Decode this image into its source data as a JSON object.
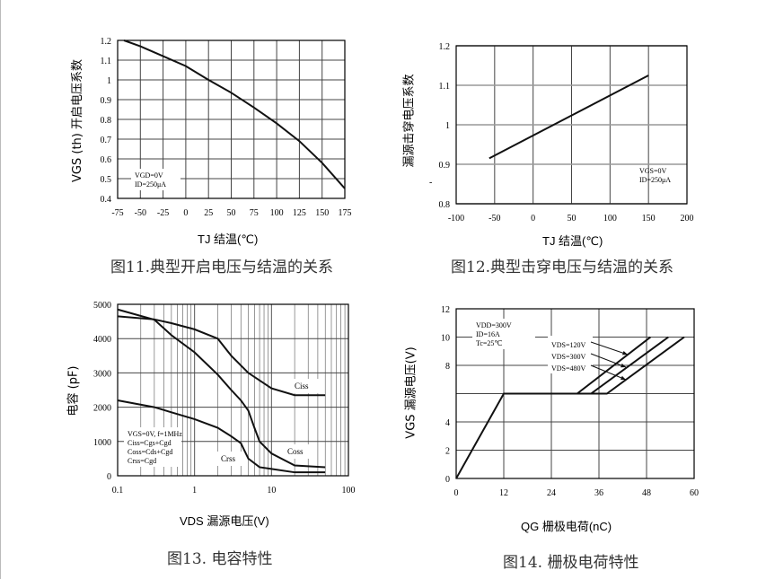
{
  "chart_data": [
    {
      "type": "line",
      "caption": "图11.典型开启电压与结温的关系",
      "xlabel": "TJ 结温(℃)",
      "ylabel": "VGS (th) 开启电压系数",
      "xlim": [
        -75,
        175
      ],
      "ylim": [
        0.4,
        1.2
      ],
      "xticks": [
        -75,
        -50,
        -25,
        0,
        25,
        50,
        75,
        100,
        125,
        150,
        175
      ],
      "yticks": [
        0.4,
        0.5,
        0.6,
        0.7,
        0.8,
        0.9,
        1,
        1.1,
        1.2
      ],
      "grid": true,
      "annotation": [
        "VGD=0V",
        "ID=250μA"
      ],
      "series": [
        {
          "x": [
            -68,
            -50,
            -25,
            0,
            25,
            50,
            75,
            100,
            125,
            150,
            175
          ],
          "y": [
            1.2,
            1.17,
            1.12,
            1.07,
            1.0,
            0.935,
            0.86,
            0.78,
            0.69,
            0.58,
            0.45
          ]
        }
      ]
    },
    {
      "type": "line",
      "caption": "图12.典型击穿电压与结温的关系",
      "xlabel": "TJ 结温(℃)",
      "ylabel": "漏源击穿电压系数",
      "xlim": [
        -100,
        200
      ],
      "ylim": [
        0.8,
        1.2
      ],
      "xticks": [
        -100,
        -50,
        0,
        50,
        100,
        150,
        200
      ],
      "yticks": [
        0.8,
        0.9,
        1,
        1.1,
        1.2
      ],
      "grid": true,
      "annotation": [
        "VGS=0V",
        "ID=250μA"
      ],
      "series": [
        {
          "x": [
            -57,
            150
          ],
          "y": [
            0.915,
            1.125
          ]
        }
      ]
    },
    {
      "type": "line",
      "caption": "图13. 电容特性",
      "xlabel": "VDS 漏源电压(V)",
      "ylabel": "电容 (pF)",
      "xscale": "log",
      "xlim": [
        0.1,
        100
      ],
      "ylim": [
        0,
        5000
      ],
      "xticks": [
        0.1,
        1,
        10,
        100
      ],
      "yticks": [
        0,
        1000,
        2000,
        3000,
        4000,
        5000
      ],
      "grid": true,
      "annotation": [
        "VGS=0V, f=1MHz",
        "Ciss=Cgs+Cgd",
        "Coss=Cds+Cgd",
        "Crss=Cgd"
      ],
      "series": [
        {
          "name": "Ciss",
          "x": [
            0.1,
            0.3,
            0.5,
            1,
            2,
            3,
            5,
            10,
            20,
            50
          ],
          "y": [
            4650,
            4560,
            4450,
            4270,
            4000,
            3500,
            3000,
            2550,
            2350,
            2350
          ]
        },
        {
          "name": "Coss",
          "x": [
            0.1,
            0.3,
            0.5,
            1,
            2,
            3,
            4,
            5,
            6,
            7,
            10,
            20,
            50
          ],
          "y": [
            4850,
            4550,
            4100,
            3600,
            2950,
            2500,
            2200,
            1900,
            1400,
            1000,
            650,
            300,
            250
          ]
        },
        {
          "name": "Crss",
          "x": [
            0.1,
            0.3,
            0.5,
            1,
            2,
            3,
            4,
            5,
            7,
            10,
            20,
            50
          ],
          "y": [
            2200,
            2000,
            1850,
            1650,
            1400,
            1150,
            950,
            500,
            250,
            200,
            100,
            100
          ]
        }
      ]
    },
    {
      "type": "line",
      "caption": "图14. 栅极电荷特性",
      "xlabel": "QG 栅极电荷(nC)",
      "ylabel": "VGS 漏源电压(V)",
      "xlim": [
        0,
        60
      ],
      "ylim": [
        0,
        12
      ],
      "xticks": [
        0,
        12,
        24,
        36,
        48,
        60
      ],
      "yticks": [
        0,
        2,
        4,
        8,
        10,
        12
      ],
      "grid": true,
      "annotation": [
        "VDD=300V",
        "ID=16A",
        "Tc=25℃"
      ],
      "series": [
        {
          "name": "VDS=120V",
          "x": [
            0,
            12,
            30.5,
            49
          ],
          "y": [
            0,
            6,
            6,
            10
          ]
        },
        {
          "name": "VDS=300V",
          "x": [
            12,
            34,
            53.5
          ],
          "y": [
            6,
            6,
            10
          ]
        },
        {
          "name": "VDS=480V",
          "x": [
            12,
            38,
            57.5
          ],
          "y": [
            6,
            6,
            10
          ]
        }
      ]
    }
  ]
}
